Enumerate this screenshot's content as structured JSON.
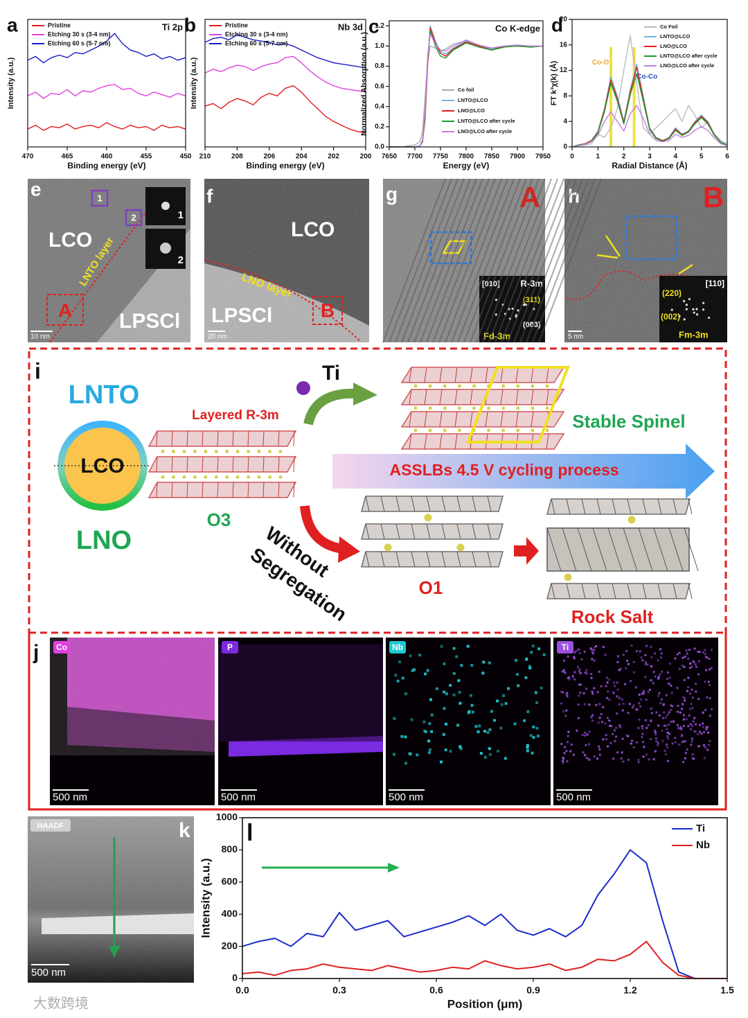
{
  "chart_data": [
    {
      "type": "line",
      "label": "a",
      "title": "Ti 2p",
      "xlabel": "Binding energy (eV)",
      "ylabel": "Intensity (a.u.)",
      "x": [
        470,
        469,
        468,
        467,
        466,
        465,
        464,
        463,
        462,
        461,
        460,
        459,
        458,
        457,
        456,
        455,
        454,
        453,
        452,
        451,
        450
      ],
      "xlim": [
        470,
        450
      ],
      "xticks": [
        470,
        465,
        460,
        455,
        450
      ],
      "ylim": [
        0,
        10
      ],
      "legend": "top-left",
      "series": [
        {
          "name": "Pristine",
          "color": "#e41a1c",
          "values": [
            1.4,
            1.7,
            1.3,
            1.6,
            1.5,
            1.8,
            1.4,
            1.6,
            1.7,
            1.5,
            1.9,
            1.6,
            1.4,
            1.7,
            1.5,
            1.6,
            1.3,
            1.7,
            1.5,
            1.6,
            1.4
          ]
        },
        {
          "name": "Etching 30 s (3-4 nm)",
          "color": "#e040e0",
          "values": [
            4.0,
            4.3,
            3.8,
            4.2,
            4.1,
            4.5,
            4.0,
            4.4,
            4.3,
            4.6,
            4.8,
            4.9,
            4.5,
            4.6,
            4.2,
            4.0,
            4.3,
            4.1,
            3.9,
            4.2,
            4.0
          ]
        },
        {
          "name": "Etching 60 s (5-7 nm)",
          "color": "#1a1ac8",
          "values": [
            6.8,
            7.1,
            6.6,
            7.0,
            7.2,
            7.0,
            7.4,
            7.3,
            7.6,
            7.9,
            8.3,
            8.9,
            8.1,
            7.6,
            7.4,
            7.1,
            7.3,
            6.9,
            7.1,
            6.8,
            7.0
          ]
        }
      ]
    },
    {
      "type": "line",
      "label": "b",
      "title": "Nb 3d",
      "xlabel": "Binding energy (eV)",
      "ylabel": "Intensity (a.u.)",
      "x": [
        210,
        209.5,
        209,
        208.5,
        208,
        207.5,
        207,
        206.5,
        206,
        205.5,
        205,
        204.5,
        204,
        203.5,
        203,
        202.5,
        202,
        201.5,
        201,
        200.5,
        200
      ],
      "xlim": [
        210,
        200
      ],
      "xticks": [
        210,
        208,
        206,
        204,
        202,
        200
      ],
      "ylim": [
        0,
        10
      ],
      "legend": "top-left",
      "series": [
        {
          "name": "Pristine",
          "color": "#e41a1c",
          "values": [
            3.2,
            3.4,
            3.0,
            3.5,
            3.8,
            3.6,
            3.3,
            3.9,
            4.2,
            4.0,
            4.6,
            4.8,
            4.3,
            3.6,
            3.0,
            2.4,
            2.0,
            1.7,
            1.4,
            1.2,
            1.1
          ]
        },
        {
          "name": "Etching 30 s (3-4 nm)",
          "color": "#e040e0",
          "values": [
            5.8,
            6.1,
            5.9,
            6.2,
            6.4,
            6.3,
            6.0,
            6.3,
            6.5,
            6.6,
            7.0,
            7.1,
            6.6,
            6.0,
            5.5,
            5.1,
            4.8,
            4.6,
            4.5,
            4.4,
            4.3
          ]
        },
        {
          "name": "Etching 60 s (5-7 nm)",
          "color": "#1a1ac8",
          "values": [
            8.2,
            8.5,
            8.6,
            8.4,
            8.8,
            8.6,
            8.4,
            8.3,
            8.2,
            8.0,
            8.1,
            7.9,
            7.6,
            7.3,
            7.0,
            6.8,
            6.6,
            6.5,
            6.4,
            6.3,
            6.2
          ]
        }
      ]
    },
    {
      "type": "line",
      "label": "c",
      "title": "Co K-edge",
      "xlabel": "Energy (eV)",
      "ylabel": "Normalized Absorption (a.u.)",
      "x": [
        7650,
        7675,
        7700,
        7710,
        7715,
        7720,
        7725,
        7730,
        7740,
        7750,
        7760,
        7775,
        7800,
        7825,
        7850,
        7875,
        7900,
        7925,
        7950
      ],
      "xlim": [
        7650,
        7950
      ],
      "xticks": [
        7650,
        7700,
        7750,
        7800,
        7850,
        7900,
        7950
      ],
      "ylim": [
        0,
        1.25
      ],
      "yticks": [
        {
          "value": 0,
          "label": "0.0"
        },
        0.2,
        0.4,
        0.6,
        0.8,
        {
          "value": 1,
          "label": "1.0"
        },
        1.2
      ],
      "legend": "center-right",
      "series": [
        {
          "name": "Co foil",
          "color": "#aaaaaa",
          "values": [
            0,
            0,
            0.02,
            0.05,
            0.15,
            0.5,
            0.85,
            1.0,
            0.98,
            0.95,
            0.97,
            1.02,
            1.05,
            1.0,
            0.98,
            1.0,
            1.0,
            0.99,
            1.0
          ]
        },
        {
          "name": "LNTO@LCO",
          "color": "#6fb7e0",
          "values": [
            0,
            0,
            0,
            0.01,
            0.05,
            0.3,
            0.85,
            1.2,
            1.05,
            0.95,
            0.92,
            0.98,
            1.05,
            1.0,
            0.97,
            1.0,
            1.01,
            0.99,
            1.0
          ]
        },
        {
          "name": "LNO@LCO",
          "color": "#e41a1c",
          "values": [
            0,
            0,
            0,
            0.01,
            0.05,
            0.28,
            0.82,
            1.18,
            1.03,
            0.93,
            0.9,
            0.97,
            1.04,
            1.0,
            0.96,
            1.0,
            1.0,
            0.99,
            1.0
          ]
        },
        {
          "name": "LNTO@LCO after cycle",
          "color": "#1a9a2a",
          "values": [
            0,
            0,
            0,
            0.01,
            0.06,
            0.33,
            0.88,
            1.15,
            1.0,
            0.9,
            0.88,
            0.96,
            1.03,
            0.99,
            0.96,
            0.99,
            1.0,
            0.99,
            1.0
          ]
        },
        {
          "name": "LNO@LCO after cycle",
          "color": "#c07de0",
          "values": [
            0,
            0,
            0,
            0.01,
            0.07,
            0.36,
            0.9,
            1.12,
            1.02,
            0.96,
            0.95,
            1.0,
            1.06,
            1.01,
            0.98,
            1.0,
            1.01,
            1.0,
            1.0
          ]
        }
      ]
    },
    {
      "type": "line",
      "label": "d",
      "xlabel": "Radial Distance (Å)",
      "ylabel": "FT k³χ(k) (Å)",
      "x": [
        0,
        0.25,
        0.5,
        0.75,
        1,
        1.25,
        1.5,
        1.75,
        2,
        2.25,
        2.5,
        2.75,
        3,
        3.25,
        3.5,
        3.75,
        4,
        4.25,
        4.5,
        4.75,
        5,
        5.25,
        5.5,
        5.75,
        6
      ],
      "xlim": [
        0,
        6
      ],
      "xticks": [
        0,
        1,
        2,
        3,
        4,
        5,
        6
      ],
      "ylim": [
        0,
        20
      ],
      "yticks": [
        0,
        4,
        8,
        12,
        16,
        20
      ],
      "legend": "top-right",
      "highlight_x": [
        1.5,
        2.4
      ],
      "highlight_color": "#f0e040",
      "annotations": [
        {
          "text": "Co-O",
          "x": 1.1,
          "y": 13.2,
          "color": "#e8a33c"
        },
        {
          "text": "Co-Co",
          "x": 2.9,
          "y": 11,
          "color": "#3050c0"
        }
      ],
      "series": [
        {
          "name": "Co Foil",
          "color": "#bbbbbb",
          "values": [
            0,
            0.2,
            0.3,
            0.5,
            2,
            1.5,
            3,
            6,
            12,
            17.5,
            10,
            3,
            2,
            3,
            4,
            5,
            6,
            4,
            6.5,
            5,
            3,
            4,
            2,
            1,
            0.5
          ]
        },
        {
          "name": "LNTO@LCO",
          "color": "#6fb7e0",
          "values": [
            0,
            0.3,
            0.5,
            1,
            2.5,
            6,
            11,
            8,
            4,
            9,
            13,
            8,
            3,
            1.5,
            1,
            1.5,
            3,
            2,
            2.5,
            4,
            5,
            4,
            2,
            0.8,
            0.3
          ]
        },
        {
          "name": "LNO@LCO",
          "color": "#e41a1c",
          "values": [
            0,
            0.3,
            0.5,
            1,
            2.3,
            5.8,
            10.5,
            7.6,
            3.8,
            8.6,
            12.5,
            7.6,
            2.8,
            1.4,
            1,
            1.4,
            2.8,
            1.9,
            2.4,
            3.8,
            4.8,
            3.8,
            1.9,
            0.7,
            0.3
          ]
        },
        {
          "name": "LNTO@LCO after cycle",
          "color": "#1a9a2a",
          "values": [
            0,
            0.3,
            0.4,
            0.9,
            2.2,
            5.5,
            10,
            7.2,
            3.6,
            8.2,
            11.5,
            7.2,
            2.7,
            1.3,
            0.9,
            1.3,
            2.6,
            1.8,
            2.3,
            3.6,
            4.6,
            3.6,
            1.8,
            0.7,
            0.3
          ]
        },
        {
          "name": "LNO@LCO after cycle",
          "color": "#c07de0",
          "values": [
            0,
            0.2,
            0.4,
            0.8,
            1.8,
            4,
            5.5,
            4,
            2.5,
            5.2,
            6.5,
            4.5,
            2,
            1,
            0.8,
            1,
            2,
            1.5,
            1.8,
            2.6,
            3.2,
            2.6,
            1.4,
            0.5,
            0.2
          ]
        }
      ]
    },
    {
      "type": "line",
      "label": "l",
      "xlabel": "Position (μm)",
      "ylabel": "Intensity (a.u.)",
      "x": [
        0,
        0.05,
        0.1,
        0.15,
        0.2,
        0.25,
        0.3,
        0.35,
        0.4,
        0.45,
        0.5,
        0.55,
        0.6,
        0.65,
        0.7,
        0.75,
        0.8,
        0.85,
        0.9,
        0.95,
        1,
        1.05,
        1.1,
        1.15,
        1.2,
        1.25,
        1.3,
        1.35,
        1.4,
        1.45,
        1.5
      ],
      "xlim": [
        0,
        1.5
      ],
      "xticks": [
        {
          "value": 0,
          "label": "0.0"
        },
        0.3,
        0.6,
        0.9,
        1.2,
        1.5
      ],
      "ylim": [
        0,
        1000
      ],
      "yticks": [
        0,
        200,
        400,
        600,
        800,
        1000
      ],
      "legend": "top-right",
      "series": [
        {
          "name": "Ti",
          "color": "#1a2ac8",
          "values": [
            200,
            230,
            250,
            200,
            280,
            260,
            410,
            300,
            330,
            360,
            260,
            290,
            320,
            350,
            390,
            330,
            400,
            300,
            270,
            310,
            260,
            330,
            520,
            650,
            800,
            720,
            360,
            40,
            0,
            0,
            0
          ]
        },
        {
          "name": "Nb",
          "color": "#e02020",
          "values": [
            30,
            40,
            20,
            50,
            60,
            90,
            70,
            60,
            50,
            80,
            60,
            40,
            50,
            70,
            60,
            110,
            80,
            60,
            70,
            90,
            50,
            70,
            120,
            110,
            150,
            230,
            100,
            20,
            0,
            0,
            0
          ]
        }
      ]
    }
  ],
  "tem": {
    "e": {
      "label": "e",
      "lco": "LCO",
      "layer": "LNTO layer",
      "lpscl": "LPSCl",
      "region": "A",
      "box1": "1",
      "box2": "2",
      "fft1": "1",
      "fft2": "2",
      "scale": "10 nm"
    },
    "f": {
      "label": "f",
      "lco": "LCO",
      "layer": "LNO layer",
      "lpscl": "LPSCl",
      "region": "B",
      "scale": "20 nm"
    },
    "g": {
      "label": "g",
      "region": "A",
      "zone": "[010]",
      "phase": "R-3m",
      "spot1": "(311)",
      "spot2": "(003)",
      "phase2": "Fd-3m"
    },
    "h": {
      "label": "h",
      "region": "B",
      "zone": "[110]",
      "spot1": "(220)",
      "spot2": "(002)",
      "phase": "Fm-3m",
      "scale": "5 nm"
    }
  },
  "schematic": {
    "label": "i",
    "shell_top": "LNTO",
    "core": "LCO",
    "shell_bottom": "LNO",
    "layered": "Layered R-3m",
    "o3": "O3",
    "dopant": "Ti",
    "spinel": "Stable  Spinel",
    "process": "ASSLBs  4.5 V cycling process",
    "without": "Without",
    "segregation": "Segregation",
    "o1": "O1",
    "rocksalt": "Rock Salt"
  },
  "eds": {
    "label": "j",
    "maps": [
      {
        "element": "Co",
        "scale": "500 nm"
      },
      {
        "element": "P",
        "scale": "500 nm"
      },
      {
        "element": "Nb",
        "scale": "500 nm"
      },
      {
        "element": "Ti",
        "scale": "500 nm"
      }
    ]
  },
  "haadf": {
    "label": "k",
    "mode": "HAADF",
    "scale": "500 nm"
  },
  "watermark": "大数跨境"
}
